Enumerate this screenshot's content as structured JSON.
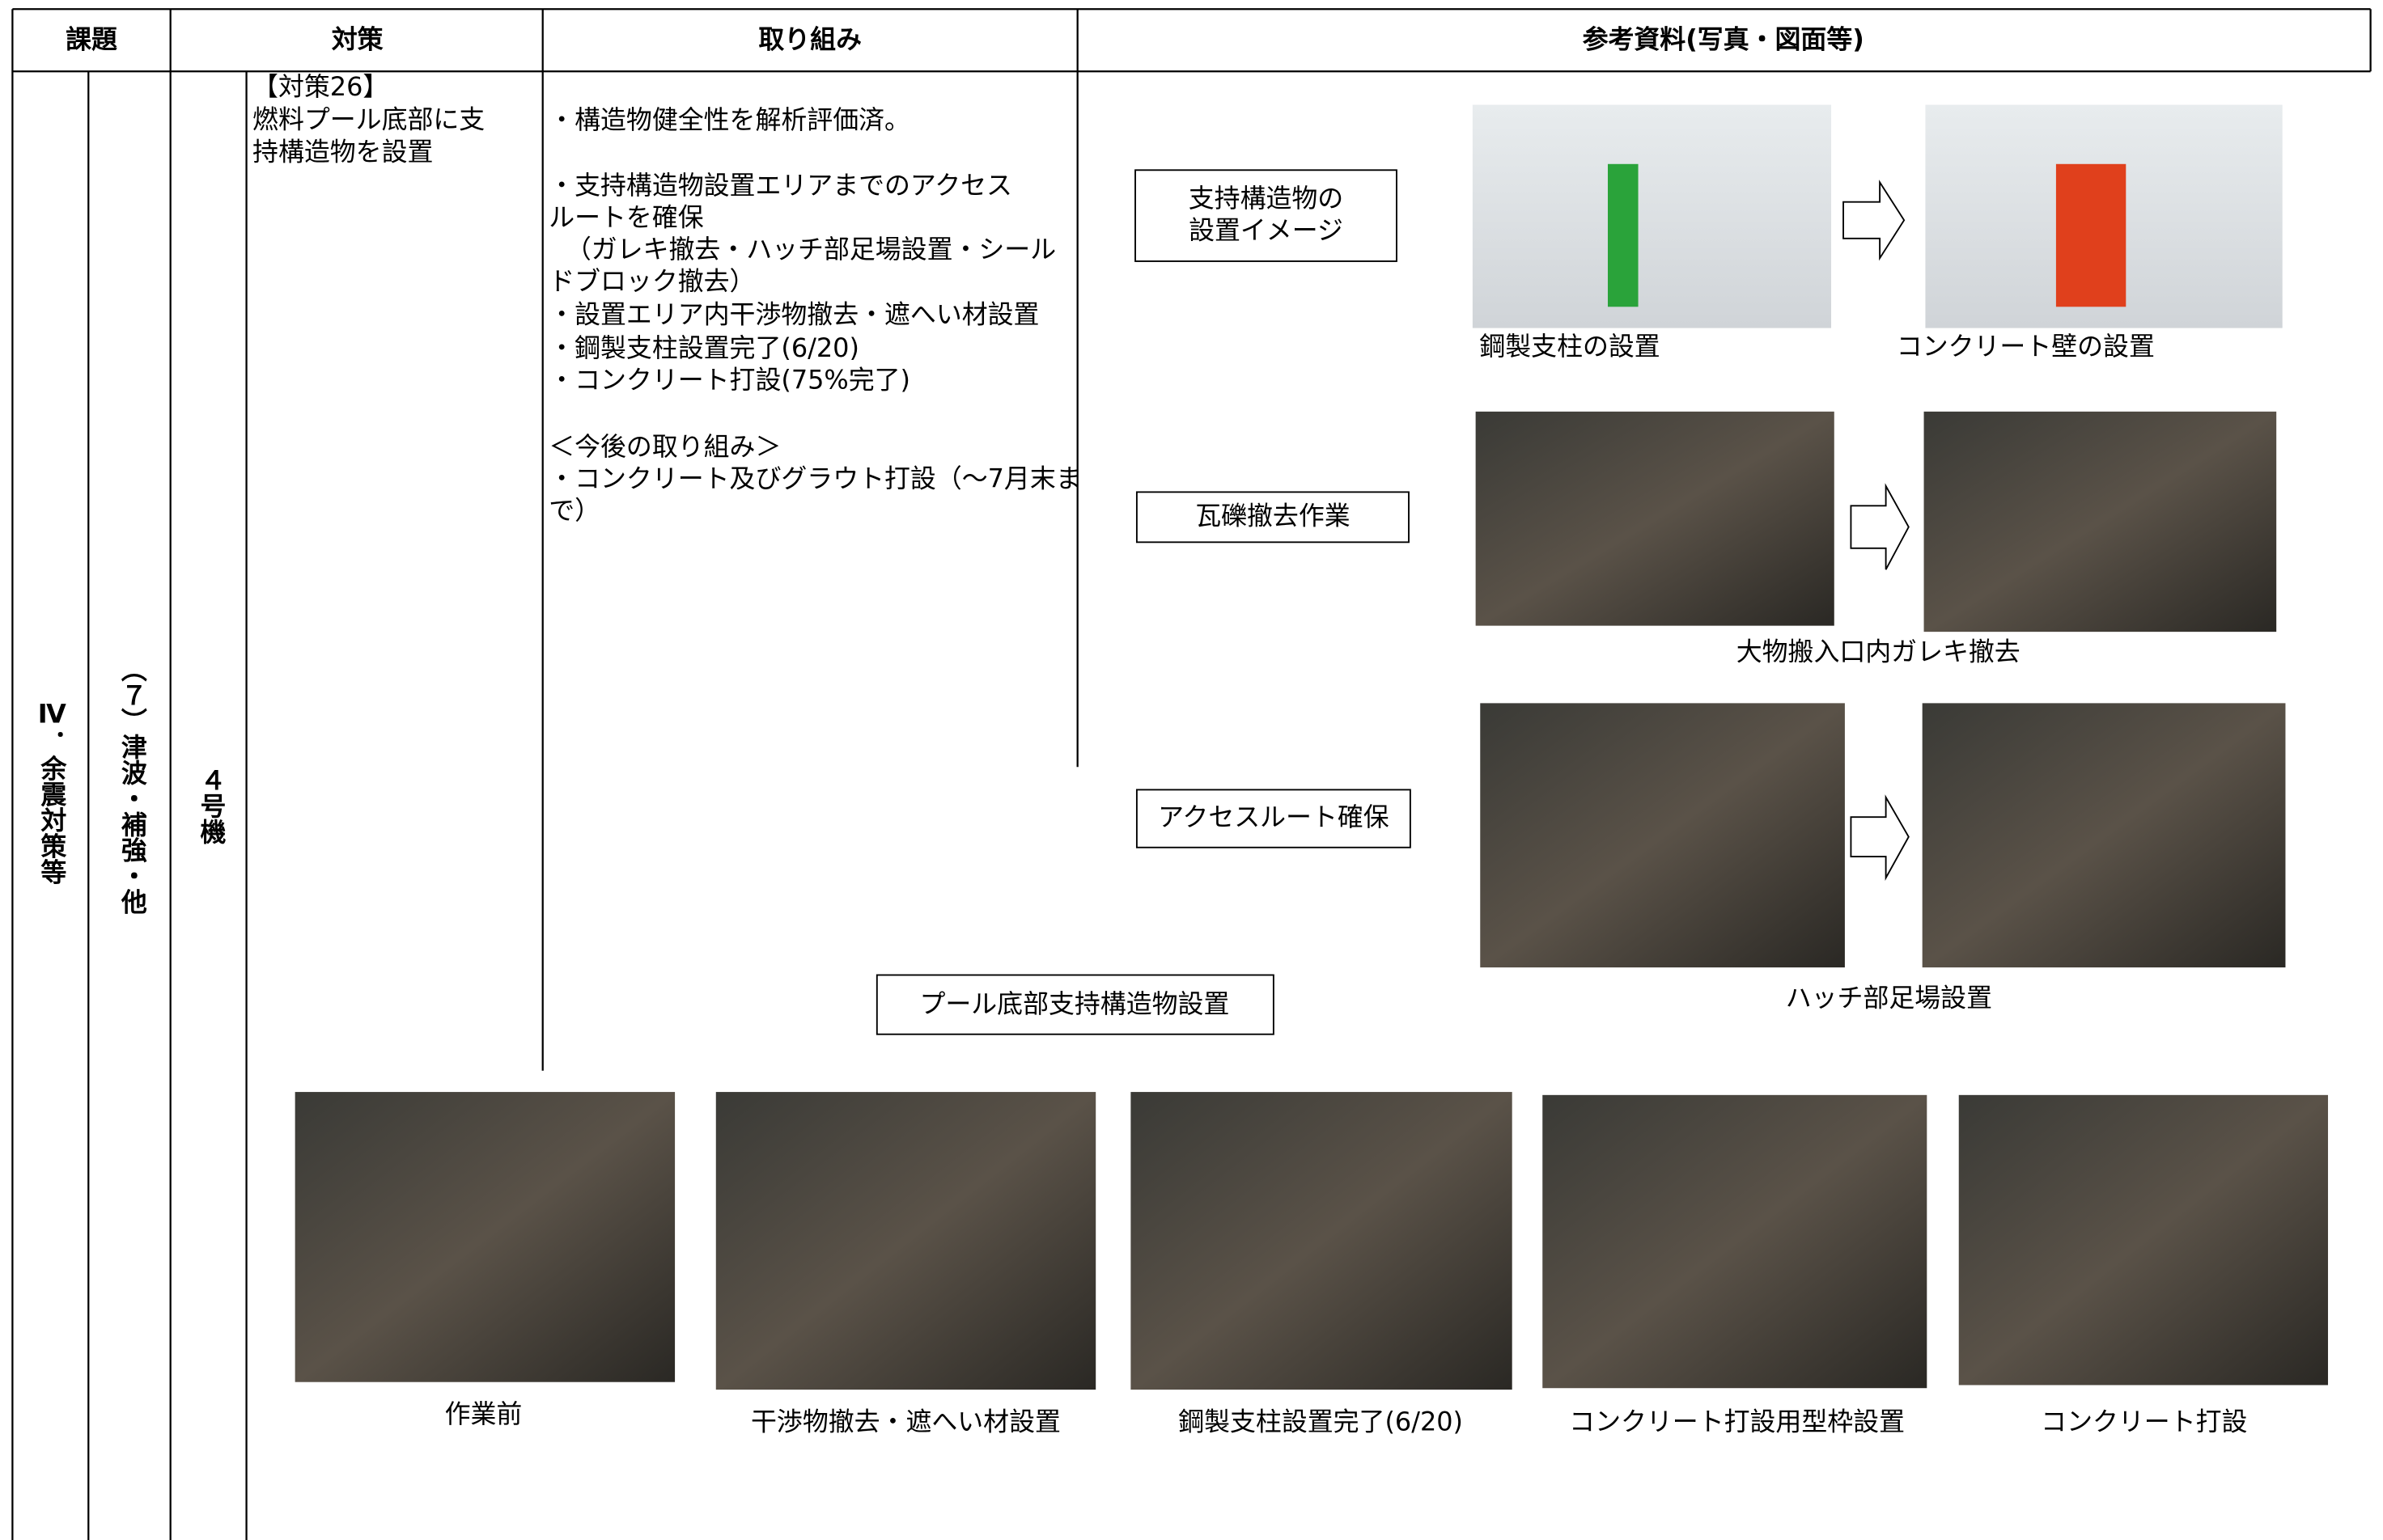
{
  "header": {
    "columns": [
      "課題",
      "対策",
      "取り組み",
      "参考資料(写真・図面等)"
    ]
  },
  "row": {
    "issue": "Ⅳ．余震対策等",
    "subissue": "（７）津波・補強・他",
    "unit": "４号機",
    "measure": [
      "【対策26】",
      "燃料プール底部に支",
      "持構造物を設置"
    ],
    "actions": [
      "・構造物健全性を解析評価済。",
      "・支持構造物設置エリアまでのアクセス",
      "ルートを確保",
      "（ガレキ撤去・ハッチ部足場設置・シール",
      "ドブロック撤去）",
      "・設置エリア内干渉物撤去・遮へい材設置",
      "・鋼製支柱設置完了(6/20)",
      "・コンクリート打設(75%完了)",
      "＜今後の取り組み＞",
      "・コンクリート及びグラウト打設（～7月末ま",
      "で）"
    ]
  },
  "reference": {
    "groups": [
      {
        "label": [
          "支持構造物の",
          "設置イメージ"
        ],
        "captions": [
          "鋼製支柱の設置",
          "コンクリート壁の設置"
        ]
      },
      {
        "label": [
          "瓦礫撤去作業"
        ],
        "captions": [
          "大物搬入口内ガレキ撤去"
        ]
      },
      {
        "label": [
          "アクセスルート確保"
        ],
        "captions": [
          "ハッチ部足場設置"
        ]
      }
    ],
    "bottom_label": "プール底部支持構造物設置",
    "bottom_photos": [
      "作業前",
      "干渉物撤去・遮へい材設置",
      "鋼製支柱設置完了(6/20)",
      "コンクリート打設用型枠設置",
      "コンクリート打設"
    ]
  }
}
